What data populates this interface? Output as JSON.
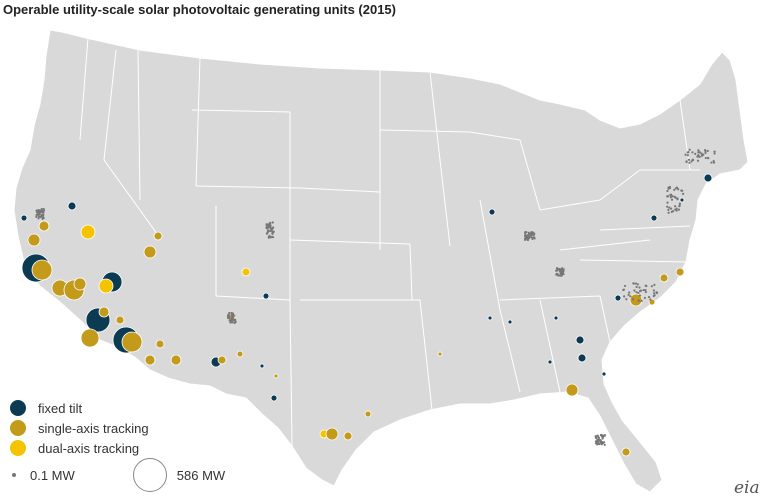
{
  "title": "Operable utility-scale solar photovoltaic generating units (2015)",
  "colors": {
    "land": "#d9d9d9",
    "border": "#ffffff",
    "fixed_tilt": "#0b3a53",
    "single_axis": "#c39a1a",
    "dual_axis": "#f5c300",
    "small_dot": "#777777"
  },
  "legend": {
    "categories": [
      {
        "key": "fixed_tilt",
        "label": "fixed tilt"
      },
      {
        "key": "single_axis",
        "label": "single-axis tracking"
      },
      {
        "key": "dual_axis",
        "label": "dual-axis tracking"
      }
    ],
    "size_min_label": "0.1 MW",
    "size_max_label": "586 MW"
  },
  "logo_text": "eia"
}
